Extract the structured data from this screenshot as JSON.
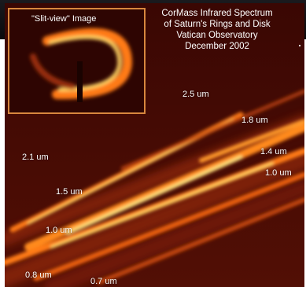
{
  "inset": {
    "title": "\"Slit-view\" Image"
  },
  "caption": {
    "line1": "CorMass Infrared Spectrum",
    "line2": "of Saturn's Rings and Disk",
    "line3": "Vatican Observatory",
    "line4": "December 2002"
  },
  "wavelength_labels": {
    "l_2_5": "2.5 um",
    "l_1_8": "1.8 um",
    "l_2_1": "2.1 um",
    "l_1_4": "1.4 um",
    "l_1_0_right": "1.0 um",
    "l_1_5": "1.5 um",
    "l_1_0_left": "1.0 um",
    "l_0_8": "0.8 um",
    "l_0_7": "0.7 um"
  },
  "colors": {
    "background": "#4a0c04",
    "frame": "#d8873e",
    "streak_core": "#ffe07a",
    "streak_mid": "#ff8a1c",
    "label": "#ffffff"
  }
}
